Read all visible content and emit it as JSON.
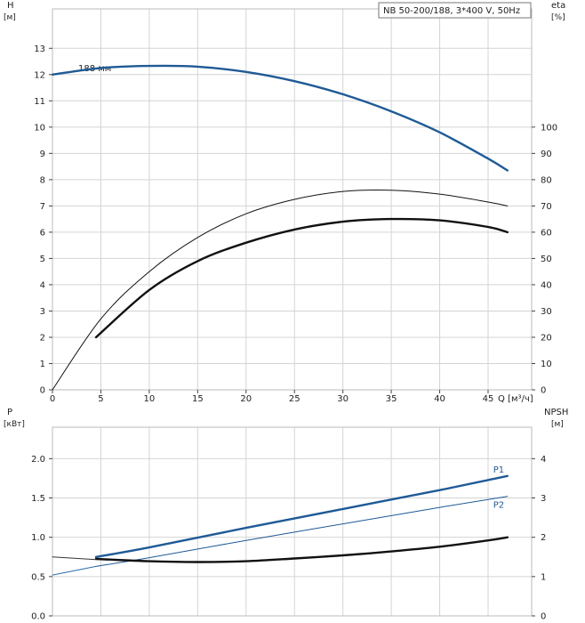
{
  "chart_data": [
    {
      "type": "line",
      "title": "NB 50-200/188, 3*400 V, 50Hz",
      "xlabel": "Q [м³/ч]",
      "xlim": [
        0,
        49.5
      ],
      "x_ticks": [
        "0",
        "5",
        "10",
        "15",
        "20",
        "25",
        "30",
        "35",
        "40",
        "45"
      ],
      "left_axis": {
        "label": "H",
        "unit": "[м]",
        "ylim": [
          0,
          14.5
        ],
        "ticks": [
          "0",
          "1",
          "2",
          "3",
          "4",
          "5",
          "6",
          "7",
          "8",
          "9",
          "10",
          "11",
          "12",
          "13"
        ]
      },
      "right_axis": {
        "label": "eta",
        "unit": "[%]",
        "ylim": [
          0,
          145
        ],
        "ticks": [
          "0",
          "10",
          "20",
          "30",
          "40",
          "50",
          "60",
          "70",
          "80",
          "90",
          "100"
        ]
      },
      "annotation": "188 мм",
      "grid": true,
      "series": [
        {
          "axis": "left",
          "color": "#1f5a96",
          "style": "thick",
          "x": [
            0,
            5,
            10,
            15,
            20,
            25,
            30,
            35,
            40,
            45,
            47
          ],
          "y": [
            12.0,
            12.25,
            12.33,
            12.3,
            12.1,
            11.75,
            11.25,
            10.6,
            9.8,
            8.8,
            8.35
          ]
        },
        {
          "axis": "right",
          "color": "#111111",
          "style": "thin",
          "x": [
            0,
            5,
            10,
            15,
            20,
            25,
            30,
            35,
            40,
            45,
            47
          ],
          "y": [
            0,
            27,
            45,
            58,
            67,
            72.5,
            75.5,
            76,
            74.5,
            71.5,
            70
          ]
        },
        {
          "axis": "right",
          "color": "#111111",
          "style": "thick",
          "x": [
            4.5,
            10,
            15,
            20,
            25,
            30,
            35,
            40,
            45,
            47
          ],
          "y": [
            20,
            38,
            49,
            56,
            61,
            64,
            65,
            64.5,
            62,
            60
          ]
        }
      ]
    },
    {
      "type": "line",
      "xlim": [
        0,
        49.5
      ],
      "left_axis": {
        "label": "P",
        "unit": "[кВт]",
        "ylim": [
          0,
          2.4
        ],
        "ticks": [
          "0.0",
          "0.5",
          "1.0",
          "1.5",
          "2.0"
        ]
      },
      "right_axis": {
        "label": "NPSH",
        "unit": "[м]",
        "ylim": [
          0,
          4.8
        ],
        "ticks": [
          "0",
          "1",
          "2",
          "3",
          "4"
        ]
      },
      "grid": true,
      "series": [
        {
          "name": "P1",
          "axis": "left",
          "color": "#1f5a96",
          "style": "thick",
          "x": [
            4.5,
            10,
            20,
            30,
            40,
            47
          ],
          "y": [
            0.75,
            0.87,
            1.12,
            1.36,
            1.6,
            1.78
          ]
        },
        {
          "name": "P2",
          "axis": "left",
          "color": "#1f5a96",
          "style": "thin",
          "x": [
            4.5,
            10,
            20,
            30,
            40,
            47
          ],
          "y": [
            0.63,
            0.74,
            0.96,
            1.17,
            1.38,
            1.52
          ]
        },
        {
          "axis": "left",
          "color": "#2e6aa8",
          "style": "thin",
          "x": [
            0,
            4.5
          ],
          "y": [
            0.52,
            0.63
          ]
        },
        {
          "axis": "right",
          "color": "#111111",
          "style": "thick",
          "x": [
            4.5,
            10,
            15,
            20,
            25,
            30,
            35,
            40,
            45,
            47
          ],
          "y": [
            1.45,
            1.39,
            1.37,
            1.39,
            1.46,
            1.54,
            1.64,
            1.76,
            1.92,
            2.0
          ]
        },
        {
          "axis": "right",
          "color": "#333333",
          "style": "thin",
          "x": [
            0,
            4.5
          ],
          "y": [
            1.5,
            1.43
          ]
        }
      ]
    }
  ]
}
